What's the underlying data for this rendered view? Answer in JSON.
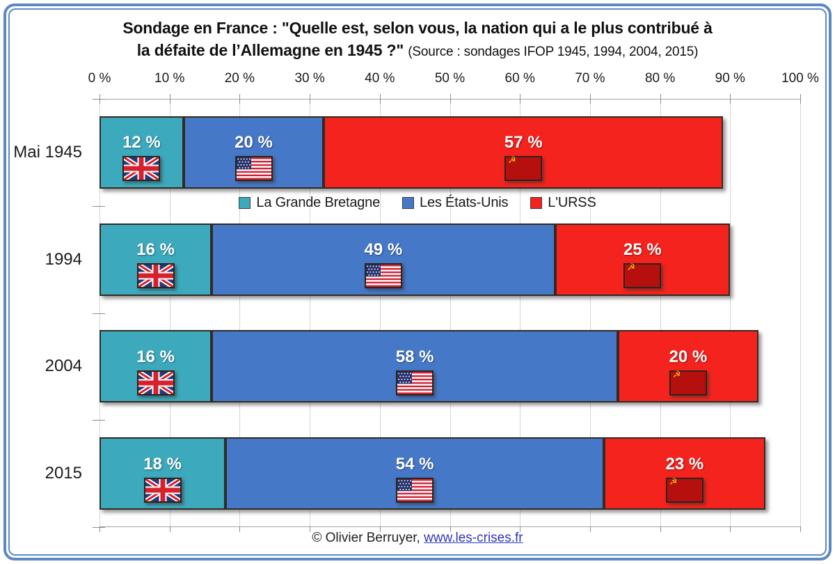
{
  "frame": {
    "color": "#5b88c7"
  },
  "title": {
    "line1": "Sondage en France : \"Quelle est, selon vous, la nation qui a le plus contribué à",
    "line2_main": "la défaite de l’Allemagne en 1945 ?\"",
    "line2_source": "(Source : sondages IFOP 1945, 1994, 2004, 2015)"
  },
  "footer": {
    "copyright": "© Olivier Berruyer,",
    "link_text": "www.les-crises.fr"
  },
  "chart_data": {
    "type": "bar",
    "orientation": "horizontal",
    "stacked": true,
    "title": "Sondage en France : \"Quelle est, selon vous, la nation qui a le plus contribué à la défaite de l’Allemagne en 1945 ?\"",
    "subtitle": "(Source : sondages IFOP 1945, 1994, 2004, 2015)",
    "categories": [
      "Mai 1945",
      "1994",
      "2004",
      "2015"
    ],
    "series": [
      {
        "name": "La Grande Bretagne",
        "color": "#3da9bd",
        "flag_icon": "uk-flag",
        "values": [
          12,
          16,
          16,
          18
        ]
      },
      {
        "name": "Les États-Unis",
        "color": "#4678c8",
        "flag_icon": "us-flag",
        "values": [
          20,
          49,
          58,
          54
        ]
      },
      {
        "name": "L'URSS",
        "color": "#f5231d",
        "flag_icon": "ussr-flag",
        "values": [
          57,
          25,
          20,
          23
        ]
      }
    ],
    "x_ticks": [
      "0 %",
      "10 %",
      "20 %",
      "30 %",
      "40 %",
      "50 %",
      "60 %",
      "70 %",
      "80 %",
      "90 %",
      "100 %"
    ],
    "xlim": [
      0,
      100
    ],
    "value_suffix": " %",
    "grid": true,
    "legend_position": "between-first-and-second-row",
    "ussr_flag_emblem": "☭"
  }
}
